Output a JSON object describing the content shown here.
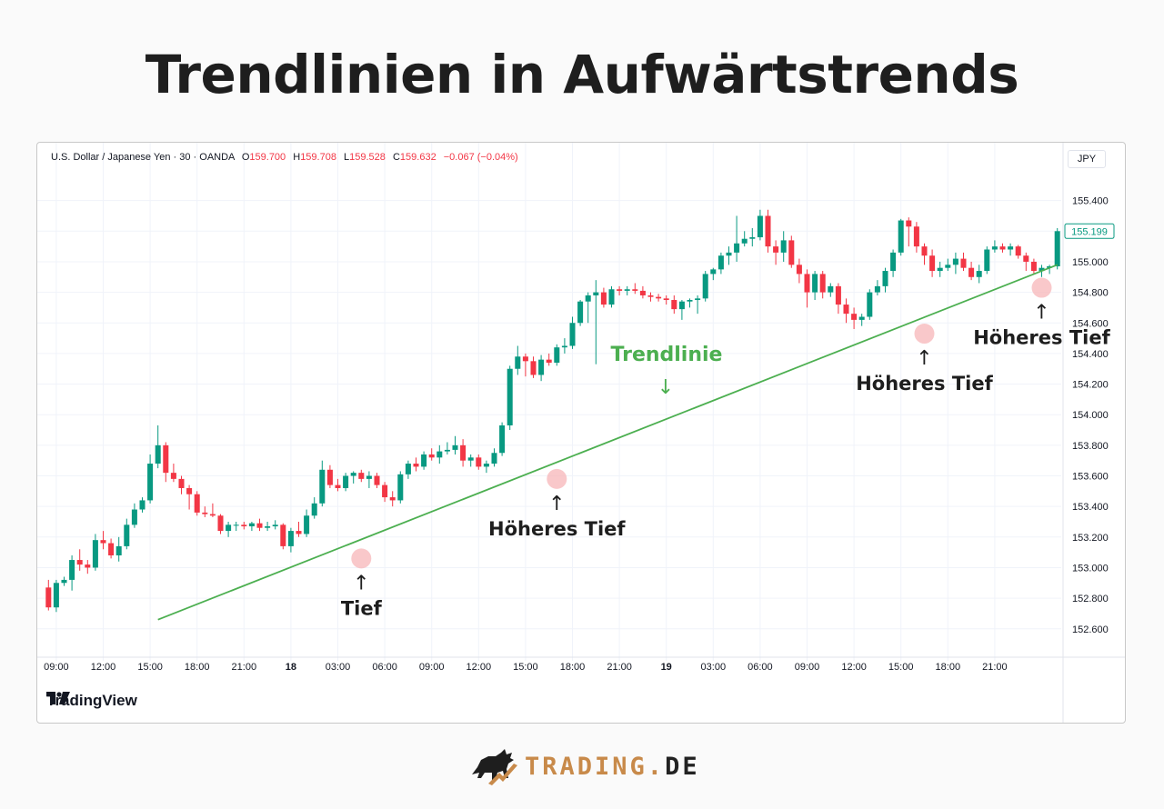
{
  "title": "Trendlinien in Aufwärtstrends",
  "legend": {
    "symbol": "U.S. Dollar / Japanese Yen · 30 · OANDA",
    "o_label": "O",
    "o_value": "159.700",
    "h_label": "H",
    "h_value": "159.708",
    "l_label": "L",
    "l_value": "159.528",
    "c_label": "C",
    "c_value": "159.632",
    "change": "−0.067 (−0.04%)"
  },
  "currency": "JPY",
  "watermark": "TradingView",
  "brand": {
    "name": "TRADING",
    "dot": ".",
    "tld": "DE"
  },
  "colors": {
    "up": "#089981",
    "down": "#f23645",
    "trendline": "#4caf50",
    "marker": "#f7b6b8",
    "last_price": "#089981"
  },
  "chart_data": {
    "type": "candlestick",
    "title": "",
    "ylim": [
      152.45,
      155.6
    ],
    "y_ticks": [
      "152.600",
      "152.800",
      "153.000",
      "153.200",
      "153.400",
      "153.600",
      "153.800",
      "154.000",
      "154.200",
      "154.400",
      "154.600",
      "154.800",
      "155.000",
      "155.200",
      "155.400"
    ],
    "last_price_label": "155.199",
    "x_ticks": [
      {
        "label": "09:00",
        "i": 1,
        "bold": false
      },
      {
        "label": "12:00",
        "i": 7,
        "bold": false
      },
      {
        "label": "15:00",
        "i": 13,
        "bold": false
      },
      {
        "label": "18:00",
        "i": 19,
        "bold": false
      },
      {
        "label": "21:00",
        "i": 25,
        "bold": false
      },
      {
        "label": "18",
        "i": 31,
        "bold": true
      },
      {
        "label": "03:00",
        "i": 37,
        "bold": false
      },
      {
        "label": "06:00",
        "i": 43,
        "bold": false
      },
      {
        "label": "09:00",
        "i": 49,
        "bold": false
      },
      {
        "label": "12:00",
        "i": 55,
        "bold": false
      },
      {
        "label": "15:00",
        "i": 61,
        "bold": false
      },
      {
        "label": "18:00",
        "i": 67,
        "bold": false
      },
      {
        "label": "21:00",
        "i": 73,
        "bold": false
      },
      {
        "label": "19",
        "i": 79,
        "bold": true
      },
      {
        "label": "03:00",
        "i": 85,
        "bold": false
      },
      {
        "label": "06:00",
        "i": 91,
        "bold": false
      },
      {
        "label": "09:00",
        "i": 97,
        "bold": false
      },
      {
        "label": "12:00",
        "i": 103,
        "bold": false
      },
      {
        "label": "15:00",
        "i": 109,
        "bold": false
      },
      {
        "label": "18:00",
        "i": 115,
        "bold": false
      },
      {
        "label": "21:00",
        "i": 121,
        "bold": false
      }
    ],
    "candles": [
      [
        152.87,
        152.92,
        152.72,
        152.74
      ],
      [
        152.74,
        152.92,
        152.71,
        152.9
      ],
      [
        152.9,
        152.94,
        152.88,
        152.92
      ],
      [
        152.92,
        153.08,
        152.85,
        153.05
      ],
      [
        153.05,
        153.12,
        152.98,
        153.02
      ],
      [
        153.02,
        153.05,
        152.96,
        153.0
      ],
      [
        153.0,
        153.22,
        152.98,
        153.18
      ],
      [
        153.18,
        153.24,
        153.12,
        153.16
      ],
      [
        153.16,
        153.19,
        153.06,
        153.08
      ],
      [
        153.08,
        153.2,
        153.04,
        153.14
      ],
      [
        153.14,
        153.32,
        153.12,
        153.28
      ],
      [
        153.28,
        153.42,
        153.26,
        153.38
      ],
      [
        153.38,
        153.46,
        153.36,
        153.44
      ],
      [
        153.44,
        153.74,
        153.42,
        153.68
      ],
      [
        153.68,
        153.93,
        153.65,
        153.8
      ],
      [
        153.8,
        153.82,
        153.56,
        153.62
      ],
      [
        153.62,
        153.68,
        153.56,
        153.58
      ],
      [
        153.58,
        153.6,
        153.48,
        153.52
      ],
      [
        153.52,
        153.54,
        153.38,
        153.48
      ],
      [
        153.48,
        153.5,
        153.34,
        153.36
      ],
      [
        153.36,
        153.4,
        153.33,
        153.35
      ],
      [
        153.35,
        153.42,
        153.33,
        153.34
      ],
      [
        153.34,
        153.35,
        153.22,
        153.24
      ],
      [
        153.24,
        153.3,
        153.2,
        153.28
      ],
      [
        153.28,
        153.3,
        153.24,
        153.28
      ],
      [
        153.28,
        153.3,
        153.25,
        153.27
      ],
      [
        153.27,
        153.3,
        153.24,
        153.29
      ],
      [
        153.29,
        153.32,
        153.24,
        153.26
      ],
      [
        153.26,
        153.3,
        153.24,
        153.27
      ],
      [
        153.27,
        153.31,
        153.25,
        153.28
      ],
      [
        153.28,
        153.29,
        153.12,
        153.14
      ],
      [
        153.14,
        153.26,
        153.1,
        153.24
      ],
      [
        153.24,
        153.3,
        153.2,
        153.22
      ],
      [
        153.22,
        153.38,
        153.2,
        153.34
      ],
      [
        153.34,
        153.46,
        153.32,
        153.42
      ],
      [
        153.42,
        153.7,
        153.4,
        153.64
      ],
      [
        153.64,
        153.67,
        153.52,
        153.54
      ],
      [
        153.54,
        153.58,
        153.5,
        153.52
      ],
      [
        153.52,
        153.62,
        153.5,
        153.6
      ],
      [
        153.6,
        153.63,
        153.55,
        153.62
      ],
      [
        153.62,
        153.64,
        153.56,
        153.58
      ],
      [
        153.58,
        153.63,
        153.52,
        153.6
      ],
      [
        153.6,
        153.62,
        153.52,
        153.54
      ],
      [
        153.54,
        153.56,
        153.43,
        153.46
      ],
      [
        153.46,
        153.5,
        153.4,
        153.44
      ],
      [
        153.44,
        153.63,
        153.42,
        153.61
      ],
      [
        153.61,
        153.7,
        153.58,
        153.68
      ],
      [
        153.68,
        153.72,
        153.63,
        153.66
      ],
      [
        153.66,
        153.76,
        153.64,
        153.74
      ],
      [
        153.74,
        153.78,
        153.7,
        153.72
      ],
      [
        153.72,
        153.8,
        153.68,
        153.76
      ],
      [
        153.76,
        153.82,
        153.74,
        153.77
      ],
      [
        153.77,
        153.86,
        153.74,
        153.8
      ],
      [
        153.8,
        153.84,
        153.66,
        153.7
      ],
      [
        153.7,
        153.74,
        153.66,
        153.72
      ],
      [
        153.72,
        153.74,
        153.64,
        153.66
      ],
      [
        153.66,
        153.7,
        153.62,
        153.68
      ],
      [
        153.68,
        153.78,
        153.66,
        153.75
      ],
      [
        153.75,
        153.95,
        153.73,
        153.93
      ],
      [
        153.93,
        154.32,
        153.9,
        154.3
      ],
      [
        154.3,
        154.45,
        154.26,
        154.38
      ],
      [
        154.38,
        154.4,
        154.25,
        154.35
      ],
      [
        154.35,
        154.38,
        154.24,
        154.26
      ],
      [
        154.26,
        154.39,
        154.22,
        154.36
      ],
      [
        154.36,
        154.4,
        154.32,
        154.34
      ],
      [
        154.34,
        154.46,
        154.32,
        154.44
      ],
      [
        154.44,
        154.5,
        154.4,
        154.45
      ],
      [
        154.45,
        154.64,
        154.43,
        154.6
      ],
      [
        154.6,
        154.75,
        154.58,
        154.74
      ],
      [
        154.74,
        154.8,
        154.6,
        154.78
      ],
      [
        154.78,
        154.88,
        154.33,
        154.8
      ],
      [
        154.8,
        154.83,
        154.7,
        154.72
      ],
      [
        154.72,
        154.84,
        154.7,
        154.82
      ],
      [
        154.82,
        154.84,
        154.78,
        154.81
      ],
      [
        154.81,
        154.84,
        154.78,
        154.82
      ],
      [
        154.82,
        154.86,
        154.79,
        154.81
      ],
      [
        154.81,
        154.84,
        154.76,
        154.78
      ],
      [
        154.78,
        154.8,
        154.74,
        154.77
      ],
      [
        154.77,
        154.79,
        154.74,
        154.76
      ],
      [
        154.76,
        154.78,
        154.72,
        154.75
      ],
      [
        154.75,
        154.78,
        154.66,
        154.69
      ],
      [
        154.69,
        154.75,
        154.62,
        154.74
      ],
      [
        154.74,
        154.76,
        154.7,
        154.75
      ],
      [
        154.75,
        154.78,
        154.66,
        154.76
      ],
      [
        154.76,
        154.94,
        154.74,
        154.92
      ],
      [
        154.92,
        154.96,
        154.88,
        154.95
      ],
      [
        154.95,
        155.06,
        154.92,
        155.04
      ],
      [
        155.04,
        155.1,
        154.98,
        155.06
      ],
      [
        155.06,
        155.3,
        155.0,
        155.12
      ],
      [
        155.12,
        155.2,
        155.1,
        155.15
      ],
      [
        155.15,
        155.22,
        155.1,
        155.16
      ],
      [
        155.16,
        155.34,
        155.14,
        155.3
      ],
      [
        155.3,
        155.34,
        155.06,
        155.1
      ],
      [
        155.1,
        155.14,
        154.98,
        155.06
      ],
      [
        155.06,
        155.2,
        155.0,
        155.14
      ],
      [
        155.14,
        155.17,
        154.96,
        154.98
      ],
      [
        154.98,
        155.02,
        154.86,
        154.92
      ],
      [
        154.92,
        154.95,
        154.7,
        154.8
      ],
      [
        154.8,
        154.94,
        154.75,
        154.92
      ],
      [
        154.92,
        154.94,
        154.76,
        154.8
      ],
      [
        154.8,
        154.86,
        154.77,
        154.84
      ],
      [
        154.84,
        154.86,
        154.66,
        154.72
      ],
      [
        154.72,
        154.76,
        154.6,
        154.66
      ],
      [
        154.66,
        154.7,
        154.56,
        154.62
      ],
      [
        154.62,
        154.66,
        154.58,
        154.64
      ],
      [
        154.64,
        154.82,
        154.62,
        154.8
      ],
      [
        154.8,
        154.88,
        154.78,
        154.84
      ],
      [
        154.84,
        154.96,
        154.8,
        154.94
      ],
      [
        154.94,
        155.08,
        154.9,
        155.06
      ],
      [
        155.06,
        155.28,
        155.04,
        155.27
      ],
      [
        155.27,
        155.29,
        155.1,
        155.23
      ],
      [
        155.23,
        155.26,
        155.06,
        155.1
      ],
      [
        155.1,
        155.12,
        154.98,
        155.04
      ],
      [
        155.04,
        155.08,
        154.9,
        154.94
      ],
      [
        154.94,
        155.0,
        154.9,
        154.96
      ],
      [
        154.96,
        155.02,
        154.94,
        154.98
      ],
      [
        154.98,
        155.06,
        154.92,
        155.02
      ],
      [
        155.02,
        155.06,
        154.94,
        154.96
      ],
      [
        154.96,
        155.0,
        154.88,
        154.9
      ],
      [
        154.9,
        154.98,
        154.86,
        154.94
      ],
      [
        154.94,
        155.1,
        154.92,
        155.08
      ],
      [
        155.08,
        155.14,
        155.06,
        155.1
      ],
      [
        155.1,
        155.12,
        155.06,
        155.08
      ],
      [
        155.08,
        155.12,
        155.04,
        155.1
      ],
      [
        155.1,
        155.11,
        155.02,
        155.04
      ],
      [
        155.04,
        155.06,
        154.94,
        155.0
      ],
      [
        155.0,
        155.02,
        154.92,
        154.94
      ],
      [
        154.94,
        154.98,
        154.9,
        154.96
      ],
      [
        154.96,
        154.98,
        154.92,
        154.97
      ],
      [
        154.97,
        155.22,
        154.95,
        155.2
      ]
    ],
    "trendline": {
      "start": {
        "i": 14,
        "price": 152.66
      },
      "end": {
        "i": 129,
        "price": 154.98
      }
    },
    "annotations": [
      {
        "label": "Tief",
        "i": 40,
        "price": 153.06
      },
      {
        "label": "Höheres Tief",
        "i": 65,
        "price": 153.58
      },
      {
        "label": "Höheres Tief",
        "i": 112,
        "price": 154.53
      },
      {
        "label": "Höheres Tief",
        "i": 127,
        "price": 154.83
      }
    ],
    "trendline_label": {
      "label": "Trendlinie"
    }
  }
}
